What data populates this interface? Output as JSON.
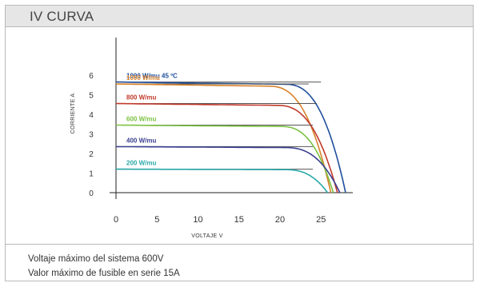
{
  "header": {
    "title": "IV CURVA"
  },
  "footer": {
    "lines": [
      "Voltaje máximo del sistema 600V",
      "Valor máximo de fusible en serie 15A"
    ]
  },
  "chart_data": {
    "type": "line",
    "xlabel": "VOLTAJE V",
    "ylabel": "CORRIENTE A",
    "xlim": [
      0,
      30
    ],
    "ylim": [
      -0.2,
      6.3
    ],
    "xticks": [
      0,
      5,
      10,
      15,
      20,
      25
    ],
    "yticks": [
      0,
      1,
      2,
      3,
      4,
      5,
      6
    ],
    "grid": false,
    "legend": "inline-labels",
    "series": [
      {
        "name": "1000 W/mu 45 ºC",
        "color": "#1f4e9b",
        "isc": 5.65,
        "voc": 28.0,
        "knee": 20.5,
        "ref_end": 25.0
      },
      {
        "name": "1000 W/mu",
        "color": "#d9822b",
        "isc": 5.55,
        "voc": 26.2,
        "knee": 18.5,
        "ref_end": 23.5
      },
      {
        "name": "800 W/mu",
        "color": "#c0392b",
        "isc": 4.55,
        "voc": 27.0,
        "knee": 19.5,
        "ref_end": 24.5
      },
      {
        "name": "600 W/mu",
        "color": "#7cc242",
        "isc": 3.45,
        "voc": 26.5,
        "knee": 20.0,
        "ref_end": 24.0
      },
      {
        "name": "400 W/mu",
        "color": "#3b3f8f",
        "isc": 2.35,
        "voc": 27.3,
        "knee": 20.5,
        "ref_end": 24.0
      },
      {
        "name": "200 W/mu",
        "color": "#2aa8a8",
        "isc": 1.2,
        "voc": 25.8,
        "knee": 20.5,
        "ref_end": 24.0
      }
    ]
  }
}
